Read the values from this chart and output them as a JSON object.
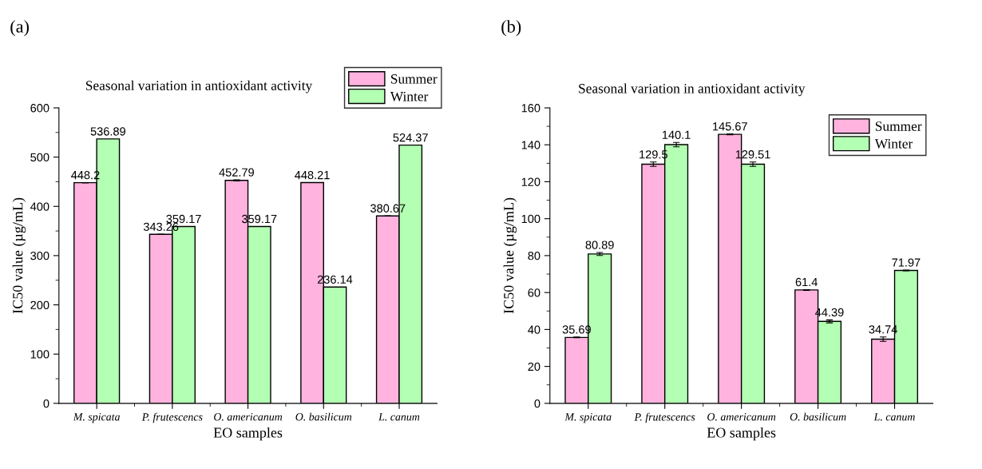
{
  "chart_data": [
    {
      "type": "bar",
      "title": "Seasonal variation in antioxidant activity",
      "xlabel": "EO samples",
      "ylabel": "IC50 value (µg/mL)",
      "categories": [
        "M. spicata",
        "P. frutescencs",
        "O. americanum",
        "O. basilicum",
        "L. canum"
      ],
      "series": [
        {
          "name": "Summer",
          "color": "#ffb3de",
          "values": [
            448.2,
            343.26,
            452.79,
            448.21,
            380.67
          ],
          "errors": [
            null,
            null,
            1,
            null,
            null
          ]
        },
        {
          "name": "Winter",
          "color": "#b3ffb3",
          "values": [
            536.89,
            359.17,
            359.17,
            236.14,
            524.37
          ]
        }
      ],
      "ylim": [
        0,
        600
      ],
      "yticks": [
        0,
        100,
        200,
        300,
        400,
        500,
        600
      ],
      "data_labels": true,
      "legend": "top right",
      "grid": false,
      "annotations": [
        "(a)"
      ]
    },
    {
      "type": "bar",
      "title": "Seasonal variation in antioxidant activity",
      "xlabel": "EO samples",
      "ylabel": "IC50 value (µg/mL)",
      "categories": [
        "M. spicata",
        "P. frutescencs",
        "O. americanum",
        "O. basilicum",
        "L. canum"
      ],
      "series": [
        {
          "name": "Summer",
          "color": "#ffb3de",
          "values": [
            35.69,
            129.5,
            145.67,
            61.4,
            34.74
          ],
          "errors": [
            0.2,
            1.2,
            0.2,
            0.2,
            1.2
          ]
        },
        {
          "name": "Winter",
          "color": "#b3ffb3",
          "values": [
            80.89,
            140.1,
            129.51,
            44.39,
            71.97
          ],
          "errors": [
            0.8,
            1.2,
            1.2,
            0.8,
            0.2
          ]
        }
      ],
      "ylim": [
        0,
        160
      ],
      "yticks": [
        0,
        20,
        40,
        60,
        80,
        100,
        120,
        140,
        160
      ],
      "data_labels": true,
      "legend": "top right",
      "grid": false,
      "annotations": [
        "(b)"
      ]
    }
  ]
}
